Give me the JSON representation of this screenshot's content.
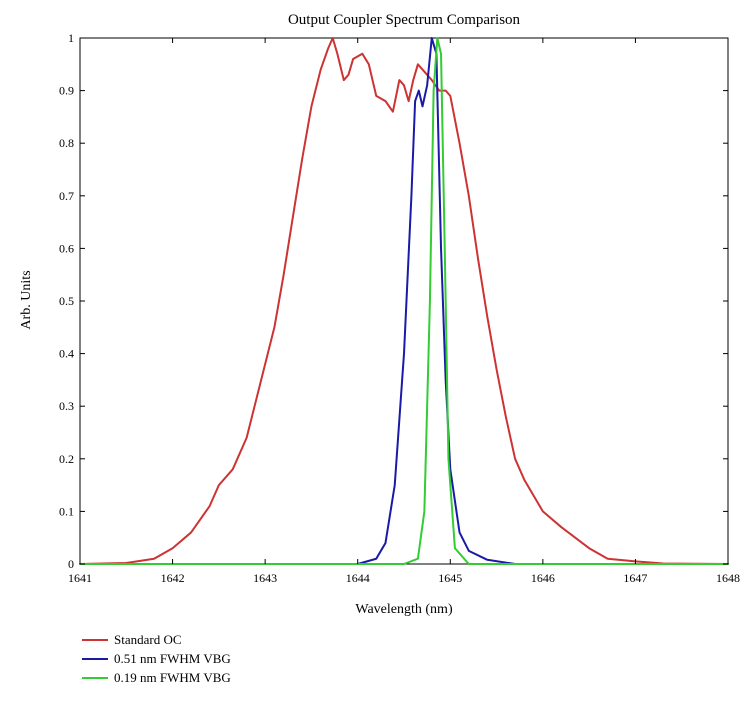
{
  "chart_data": {
    "type": "line",
    "title": "Output Coupler Spectrum Comparison",
    "xlabel": "Wavelength (nm)",
    "ylabel": "Arb. Units",
    "xlim": [
      1641,
      1648
    ],
    "ylim": [
      0,
      1
    ],
    "x_ticks": [
      "1641",
      "1642",
      "1643",
      "1644",
      "1645",
      "1646",
      "1647",
      "1648"
    ],
    "y_ticks": [
      "0",
      "0.1",
      "0.2",
      "0.3",
      "0.4",
      "0.5",
      "0.6",
      "0.7",
      "0.8",
      "0.9",
      "1"
    ],
    "grid": false,
    "legend_position": "bottom-left",
    "series": [
      {
        "name": "Standard OC",
        "color": "#cc3333",
        "points": [
          [
            1641.0,
            0.0
          ],
          [
            1641.5,
            0.002
          ],
          [
            1641.8,
            0.01
          ],
          [
            1642.0,
            0.03
          ],
          [
            1642.2,
            0.06
          ],
          [
            1642.4,
            0.11
          ],
          [
            1642.5,
            0.15
          ],
          [
            1642.65,
            0.18
          ],
          [
            1642.8,
            0.24
          ],
          [
            1642.9,
            0.31
          ],
          [
            1643.0,
            0.38
          ],
          [
            1643.1,
            0.45
          ],
          [
            1643.2,
            0.55
          ],
          [
            1643.3,
            0.66
          ],
          [
            1643.4,
            0.77
          ],
          [
            1643.5,
            0.87
          ],
          [
            1643.6,
            0.94
          ],
          [
            1643.68,
            0.98
          ],
          [
            1643.73,
            1.0
          ],
          [
            1643.78,
            0.97
          ],
          [
            1643.85,
            0.92
          ],
          [
            1643.9,
            0.93
          ],
          [
            1643.95,
            0.96
          ],
          [
            1644.05,
            0.97
          ],
          [
            1644.12,
            0.95
          ],
          [
            1644.2,
            0.89
          ],
          [
            1644.3,
            0.88
          ],
          [
            1644.38,
            0.86
          ],
          [
            1644.45,
            0.92
          ],
          [
            1644.5,
            0.91
          ],
          [
            1644.55,
            0.88
          ],
          [
            1644.6,
            0.92
          ],
          [
            1644.65,
            0.95
          ],
          [
            1644.7,
            0.94
          ],
          [
            1644.8,
            0.92
          ],
          [
            1644.88,
            0.9
          ],
          [
            1644.95,
            0.9
          ],
          [
            1645.0,
            0.89
          ],
          [
            1645.1,
            0.8
          ],
          [
            1645.2,
            0.7
          ],
          [
            1645.3,
            0.58
          ],
          [
            1645.4,
            0.47
          ],
          [
            1645.5,
            0.37
          ],
          [
            1645.6,
            0.28
          ],
          [
            1645.7,
            0.2
          ],
          [
            1645.8,
            0.16
          ],
          [
            1645.9,
            0.13
          ],
          [
            1646.0,
            0.1
          ],
          [
            1646.2,
            0.07
          ],
          [
            1646.35,
            0.05
          ],
          [
            1646.5,
            0.03
          ],
          [
            1646.7,
            0.01
          ],
          [
            1647.0,
            0.005
          ],
          [
            1647.3,
            0.001
          ],
          [
            1648.0,
            0.0
          ]
        ]
      },
      {
        "name": "0.51 nm FWHM VBG",
        "color": "#1a1aa6",
        "points": [
          [
            1641.0,
            0.0
          ],
          [
            1644.0,
            0.0
          ],
          [
            1644.2,
            0.01
          ],
          [
            1644.3,
            0.04
          ],
          [
            1644.4,
            0.15
          ],
          [
            1644.5,
            0.4
          ],
          [
            1644.58,
            0.7
          ],
          [
            1644.62,
            0.88
          ],
          [
            1644.66,
            0.9
          ],
          [
            1644.7,
            0.87
          ],
          [
            1644.75,
            0.91
          ],
          [
            1644.8,
            1.0
          ],
          [
            1644.85,
            0.97
          ],
          [
            1644.9,
            0.6
          ],
          [
            1644.95,
            0.35
          ],
          [
            1645.0,
            0.18
          ],
          [
            1645.1,
            0.06
          ],
          [
            1645.2,
            0.025
          ],
          [
            1645.4,
            0.008
          ],
          [
            1645.7,
            0.0
          ],
          [
            1648.0,
            0.0
          ]
        ]
      },
      {
        "name": "0.19 nm FWHM VBG",
        "color": "#33cc33",
        "points": [
          [
            1641.0,
            0.0
          ],
          [
            1644.5,
            0.0
          ],
          [
            1644.65,
            0.01
          ],
          [
            1644.72,
            0.1
          ],
          [
            1644.78,
            0.5
          ],
          [
            1644.82,
            0.9
          ],
          [
            1644.86,
            1.0
          ],
          [
            1644.9,
            0.97
          ],
          [
            1644.94,
            0.6
          ],
          [
            1644.98,
            0.2
          ],
          [
            1645.05,
            0.03
          ],
          [
            1645.2,
            0.0
          ],
          [
            1648.0,
            0.0
          ]
        ]
      }
    ]
  }
}
